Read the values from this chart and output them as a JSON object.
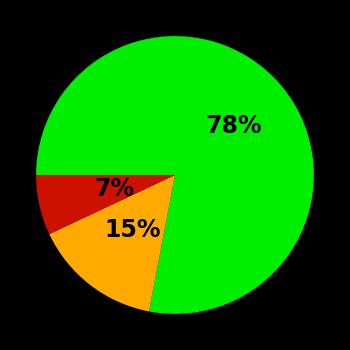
{
  "slices": [
    78,
    15,
    7
  ],
  "labels": [
    "78%",
    "15%",
    "7%"
  ],
  "colors": [
    "#00ee00",
    "#ffaa00",
    "#cc1100"
  ],
  "startangle": 180,
  "background_color": "#000000",
  "text_color": "#000000",
  "label_fontsize": 17,
  "label_fontweight": "bold",
  "label_radii": [
    0.55,
    0.5,
    0.45
  ]
}
